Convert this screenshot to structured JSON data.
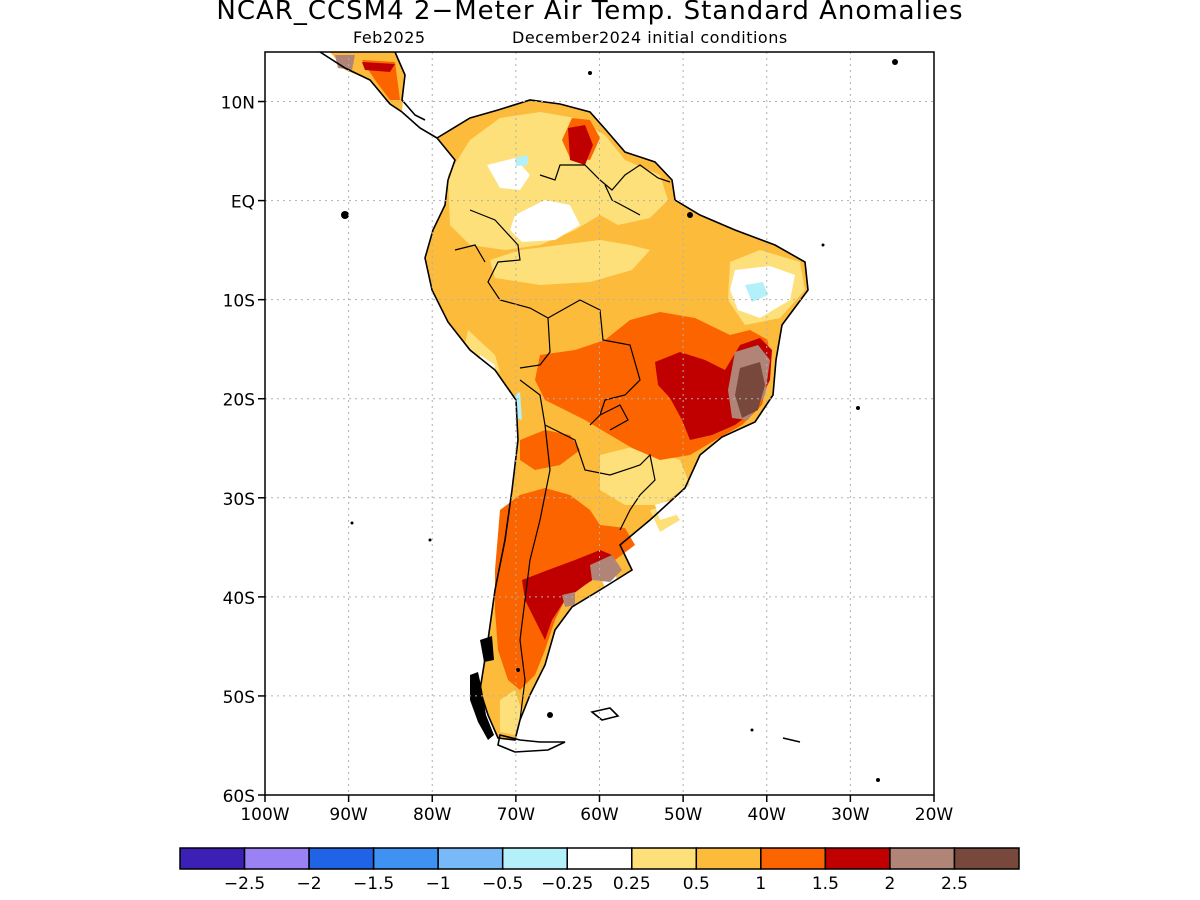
{
  "title": "NCAR_CCSM4 2−Meter Air Temp. Standard Anomalies",
  "subtitle_left": "Feb2025",
  "subtitle_right": "December2024 initial conditions",
  "map": {
    "lon_range": [
      -100,
      -20
    ],
    "lat_range": [
      -60,
      15
    ],
    "grid": true,
    "lat_ticks": [
      {
        "value": 10,
        "label": "10N"
      },
      {
        "value": 0,
        "label": "EQ"
      },
      {
        "value": -10,
        "label": "10S"
      },
      {
        "value": -20,
        "label": "20S"
      },
      {
        "value": -30,
        "label": "30S"
      },
      {
        "value": -40,
        "label": "40S"
      },
      {
        "value": -50,
        "label": "50S"
      },
      {
        "value": -60,
        "label": "60S"
      }
    ],
    "lon_ticks": [
      {
        "value": -100,
        "label": "100W"
      },
      {
        "value": -90,
        "label": "90W"
      },
      {
        "value": -80,
        "label": "80W"
      },
      {
        "value": -70,
        "label": "70W"
      },
      {
        "value": -60,
        "label": "60W"
      },
      {
        "value": -50,
        "label": "50W"
      },
      {
        "value": -40,
        "label": "40W"
      },
      {
        "value": -30,
        "label": "30W"
      },
      {
        "value": -20,
        "label": "20W"
      }
    ]
  },
  "colorbar": {
    "colors": [
      "#3c1fb4",
      "#9a82f5",
      "#1f64e6",
      "#3d92f2",
      "#78b9f8",
      "#b4f0fa",
      "#ffffff",
      "#fde07a",
      "#fdbb3c",
      "#fc6400",
      "#c00000",
      "#b08476",
      "#78483c"
    ],
    "labels": [
      "−2.5",
      "−2",
      "−1.5",
      "−1",
      "−0.5",
      "−0.25",
      "0.25",
      "0.5",
      "1",
      "1.5",
      "2",
      "2.5"
    ]
  },
  "colors": {
    "land_base": "#fdbb3c",
    "coast": "#000000",
    "grid": "#b0b0b0"
  }
}
